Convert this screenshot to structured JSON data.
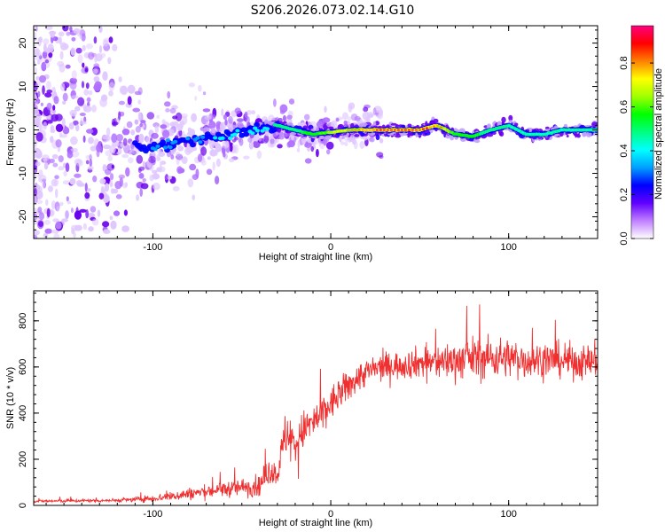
{
  "title": "S206.2026.073.02.14.G10",
  "chart_data": [
    {
      "type": "heatmap",
      "name": "spectrogram",
      "xlabel": "Height of straight line (km)",
      "ylabel": "Frequency (Hz)",
      "xlim": [
        -167,
        150
      ],
      "ylim": [
        -25,
        24
      ],
      "xticks": [
        -100,
        0,
        100
      ],
      "xtick_labels": [
        "-100",
        "0",
        "100"
      ],
      "yticks": [
        -20,
        -10,
        0,
        10,
        20
      ],
      "ytick_labels": [
        "-20",
        "-10",
        "0",
        "10",
        "20"
      ],
      "colorbar": {
        "label": "Normalized spectral amplitude",
        "range": [
          0,
          0.97
        ],
        "ticks": [
          0.0,
          0.2,
          0.4,
          0.6,
          0.8
        ],
        "tick_labels": [
          "0.0",
          "0.2",
          "0.4",
          "0.6",
          "0.8"
        ],
        "colors": [
          "#ffffff",
          "#c080ff",
          "#6000ff",
          "#0000ff",
          "#00a0ff",
          "#00ffff",
          "#00ff80",
          "#00ff00",
          "#a0ff00",
          "#ffff00",
          "#ff8000",
          "#ff0000",
          "#ff0080"
        ]
      },
      "ridge": {
        "x": [
          -100,
          -80,
          -60,
          -40,
          -30,
          -20,
          -10,
          0,
          10,
          20,
          30,
          40,
          50,
          60,
          70,
          80,
          90,
          100,
          110,
          120,
          130,
          140,
          150
        ],
        "y": [
          -4,
          -2.5,
          -1.5,
          0.5,
          1,
          0,
          -1,
          -0.5,
          0,
          0,
          0,
          0,
          0,
          1,
          -1,
          -1.5,
          0,
          1,
          -1,
          -1,
          0,
          0,
          0
        ],
        "peak_amplitude": [
          0.15,
          0.2,
          0.25,
          0.3,
          0.4,
          0.5,
          0.6,
          0.7,
          0.8,
          0.85,
          0.9,
          0.9,
          0.9,
          0.85,
          0.6,
          0.55,
          0.5,
          0.45,
          0.45,
          0.45,
          0.45,
          0.45,
          0.45
        ]
      }
    },
    {
      "type": "line",
      "name": "snr",
      "xlabel": "Height of straight line (km)",
      "ylabel": "SNR (10 * v/v)",
      "xlim": [
        -167,
        150
      ],
      "ylim": [
        0,
        930
      ],
      "xticks": [
        -100,
        0,
        100
      ],
      "xtick_labels": [
        "-100",
        "0",
        "100"
      ],
      "yticks": [
        0,
        200,
        400,
        600,
        800
      ],
      "ytick_labels": [
        "0",
        "200",
        "400",
        "600",
        "800"
      ],
      "color": "#f03030",
      "envelope": {
        "x": [
          -167,
          -120,
          -100,
          -80,
          -60,
          -40,
          -35,
          -30,
          -25,
          -20,
          -15,
          -10,
          -5,
          0,
          10,
          20,
          30,
          40,
          50,
          60,
          70,
          80,
          90,
          100,
          110,
          120,
          130,
          140,
          150
        ],
        "mean": [
          18,
          22,
          30,
          50,
          70,
          85,
          150,
          140,
          320,
          260,
          330,
          360,
          390,
          440,
          520,
          580,
          600,
          610,
          620,
          620,
          630,
          640,
          640,
          640,
          630,
          630,
          630,
          620,
          630
        ],
        "spread": [
          8,
          10,
          20,
          35,
          45,
          60,
          80,
          70,
          150,
          120,
          110,
          110,
          110,
          100,
          90,
          80,
          80,
          80,
          90,
          100,
          110,
          120,
          120,
          110,
          110,
          100,
          100,
          100,
          100
        ]
      }
    }
  ]
}
